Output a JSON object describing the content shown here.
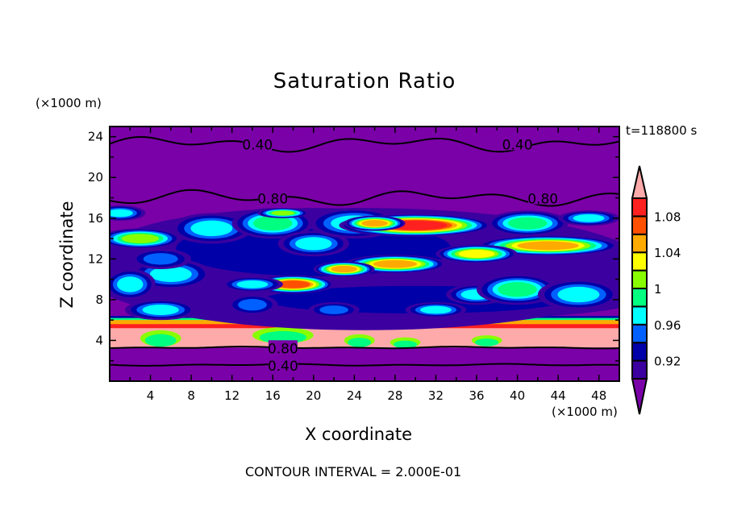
{
  "chart_data": {
    "type": "heatmap",
    "title": "Saturation Ratio",
    "xlabel": "X coordinate",
    "ylabel": "Z coordinate",
    "x_unit": "(×1000 m)",
    "y_unit": "(×1000 m)",
    "time_label": "t=118800 s",
    "footer": "CONTOUR INTERVAL = 2.000E-01",
    "xlim": [
      0,
      50
    ],
    "ylim": [
      0,
      25
    ],
    "xticks": [
      "4",
      "8",
      "12",
      "16",
      "20",
      "24",
      "28",
      "32",
      "36",
      "40",
      "44",
      "48"
    ],
    "yticks": [
      "4",
      "8",
      "12",
      "16",
      "20",
      "24"
    ],
    "colorbar": {
      "levels": [
        0.9,
        0.92,
        0.94,
        0.96,
        0.98,
        1.0,
        1.02,
        1.04,
        1.06,
        1.08,
        1.1
      ],
      "tick_labels": [
        "0.92",
        "0.96",
        "1",
        "1.04",
        "1.08"
      ],
      "colors": [
        "#7a00a8",
        "#3c00a0",
        "#0000a8",
        "#0060ff",
        "#00ffff",
        "#00ff80",
        "#88ff00",
        "#ffff00",
        "#ffaa00",
        "#ff5000",
        "#ff2020",
        "#ffaaaa"
      ],
      "extend": "both"
    },
    "contours": [
      {
        "label": "0.40",
        "z": 23.3,
        "label_x": [
          14.5,
          40
        ]
      },
      {
        "label": "0.80",
        "z": 18.0,
        "label_x": [
          16,
          42.5
        ]
      },
      {
        "label": "0.80",
        "z": 3.3,
        "label_x": [
          17
        ]
      },
      {
        "label": "0.40",
        "z": 1.6,
        "label_x": [
          17
        ]
      }
    ],
    "features": [
      {
        "x": 25,
        "z": 11,
        "w": 56,
        "h": 12,
        "v": 1
      },
      {
        "x": 20,
        "z": 13,
        "w": 40,
        "h": 8,
        "v": 2
      },
      {
        "x": 30,
        "z": 8,
        "w": 44,
        "h": 4,
        "v": 2
      },
      {
        "x": 3,
        "z": 14,
        "w": 8,
        "h": 2,
        "v": 6
      },
      {
        "x": 1,
        "z": 16.5,
        "w": 5,
        "h": 1.5,
        "v": 4
      },
      {
        "x": 10,
        "z": 15,
        "w": 8,
        "h": 3,
        "v": 4
      },
      {
        "x": 16,
        "z": 15.5,
        "w": 8,
        "h": 3,
        "v": 5
      },
      {
        "x": 17,
        "z": 16.5,
        "w": 5,
        "h": 1,
        "v": 6
      },
      {
        "x": 20,
        "z": 13.5,
        "w": 7,
        "h": 2.5,
        "v": 4
      },
      {
        "x": 24,
        "z": 15.5,
        "w": 9,
        "h": 3,
        "v": 4
      },
      {
        "x": 30,
        "z": 15.3,
        "w": 15,
        "h": 2.2,
        "v": 10
      },
      {
        "x": 26,
        "z": 15.5,
        "w": 6,
        "h": 1.5,
        "v": 8
      },
      {
        "x": 41,
        "z": 15.5,
        "w": 8,
        "h": 2.5,
        "v": 5
      },
      {
        "x": 47,
        "z": 16,
        "w": 6,
        "h": 1.5,
        "v": 4
      },
      {
        "x": 43,
        "z": 13.3,
        "w": 14,
        "h": 2,
        "v": 8
      },
      {
        "x": 36,
        "z": 12.5,
        "w": 8,
        "h": 1.8,
        "v": 7
      },
      {
        "x": 28,
        "z": 11.5,
        "w": 10,
        "h": 1.8,
        "v": 8
      },
      {
        "x": 23,
        "z": 11,
        "w": 6,
        "h": 1.5,
        "v": 8
      },
      {
        "x": 18,
        "z": 9.5,
        "w": 8,
        "h": 1.8,
        "v": 9
      },
      {
        "x": 14,
        "z": 9.5,
        "w": 6,
        "h": 1.5,
        "v": 4
      },
      {
        "x": 6,
        "z": 10.5,
        "w": 8,
        "h": 3,
        "v": 4
      },
      {
        "x": 2,
        "z": 9.5,
        "w": 5,
        "h": 3,
        "v": 4
      },
      {
        "x": 5,
        "z": 7,
        "w": 7,
        "h": 2,
        "v": 4
      },
      {
        "x": 14,
        "z": 7.5,
        "w": 5,
        "h": 2,
        "v": 3
      },
      {
        "x": 36,
        "z": 8.5,
        "w": 6,
        "h": 2,
        "v": 4
      },
      {
        "x": 40,
        "z": 9,
        "w": 8,
        "h": 3,
        "v": 5
      },
      {
        "x": 46,
        "z": 8.5,
        "w": 8,
        "h": 3,
        "v": 4
      },
      {
        "x": 32,
        "z": 7,
        "w": 6,
        "h": 1.5,
        "v": 4
      },
      {
        "x": 22,
        "z": 7,
        "w": 5,
        "h": 1.5,
        "v": 3
      },
      {
        "x": 5,
        "z": 12,
        "w": 6,
        "h": 2,
        "v": 3
      }
    ],
    "surface_layer": {
      "z_bottom": 3.2,
      "z_top": 6.2,
      "v": 11
    }
  }
}
